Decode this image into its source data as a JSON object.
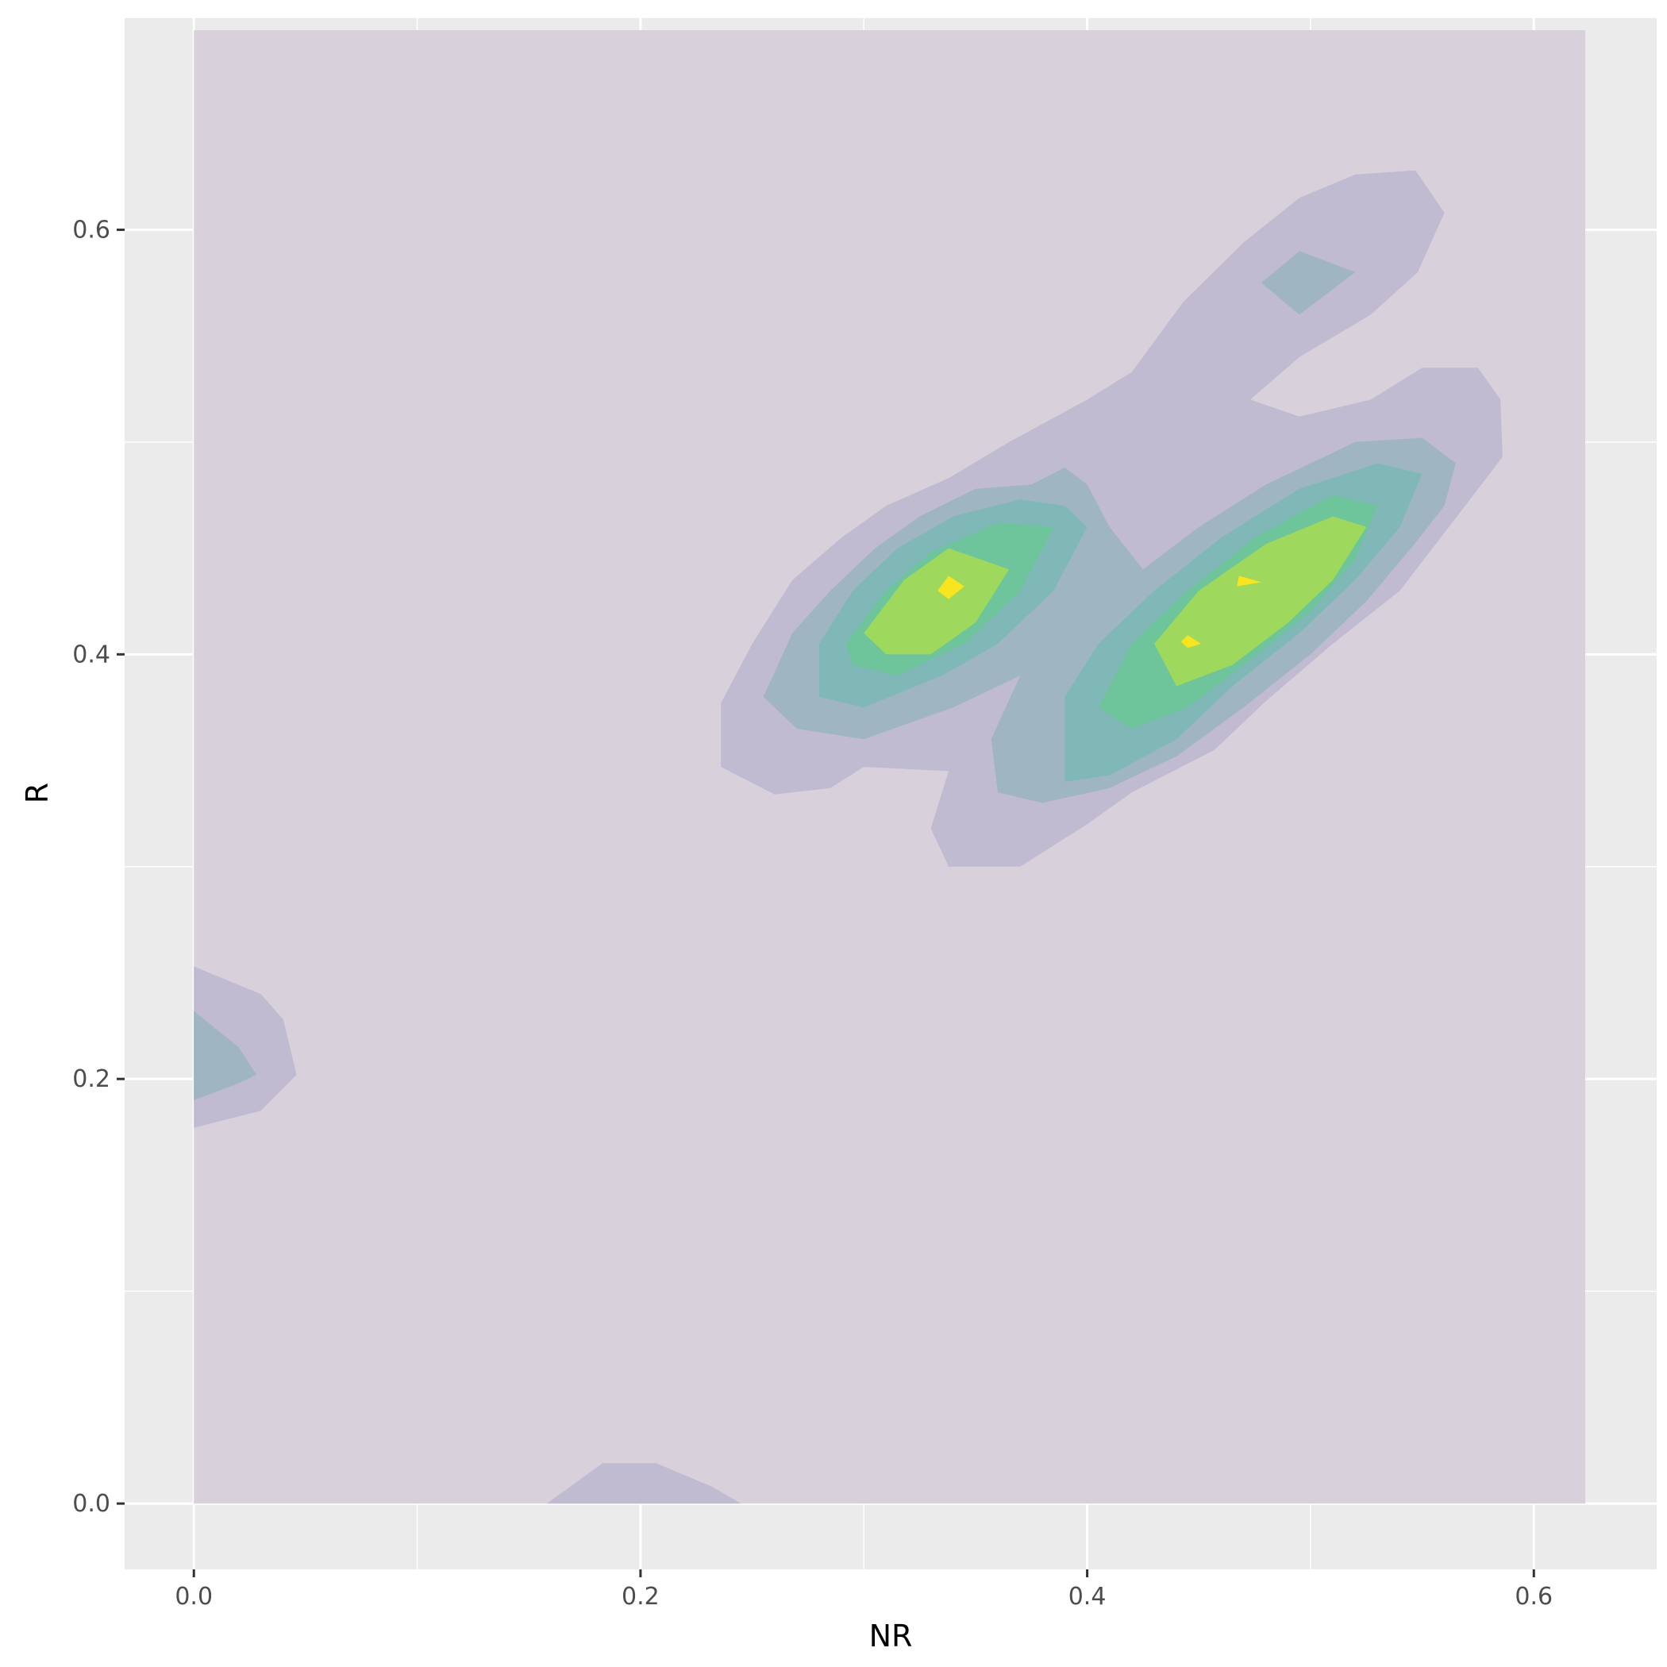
{
  "chart_data": {
    "type": "filled-density-contour",
    "title": "",
    "xlabel": "NR",
    "ylabel": "R",
    "xlim": [
      -0.031,
      0.655
    ],
    "ylim": [
      -0.031,
      0.7
    ],
    "x_ticks": [
      0.0,
      0.2,
      0.4,
      0.6
    ],
    "x_tick_labels": [
      "0.0",
      "0.2",
      "0.4",
      "0.6"
    ],
    "y_ticks": [
      0.0,
      0.2,
      0.4,
      0.6
    ],
    "y_tick_labels": [
      "0.0",
      "0.2",
      "0.4",
      "0.6"
    ],
    "grid": true,
    "legend": "none",
    "colors": {
      "panel_background": "#ebebeb",
      "grid_line": "#ffffff",
      "level_1": "#d8d1dc",
      "level_2": "#c0bbd1",
      "level_3": "#a0b5c2",
      "level_4": "#80b8b8",
      "level_5": "#6ec59b",
      "level_6": "#9ed85c",
      "level_7": "#f6e51f"
    },
    "levels": [
      {
        "level": 1,
        "polygons": [
          [
            [
              0.0,
              0.0
            ],
            [
              0.623,
              0.0
            ],
            [
              0.623,
              0.694
            ],
            [
              0.0,
              0.694
            ]
          ]
        ]
      },
      {
        "level": 2,
        "polygons": [
          [
            [
              0.236,
              0.347
            ],
            [
              0.236,
              0.377
            ],
            [
              0.25,
              0.405
            ],
            [
              0.268,
              0.435
            ],
            [
              0.29,
              0.455
            ],
            [
              0.31,
              0.47
            ],
            [
              0.338,
              0.483
            ],
            [
              0.365,
              0.5
            ],
            [
              0.4,
              0.52
            ],
            [
              0.42,
              0.533
            ],
            [
              0.443,
              0.566
            ],
            [
              0.47,
              0.594
            ],
            [
              0.495,
              0.615
            ],
            [
              0.52,
              0.626
            ],
            [
              0.547,
              0.628
            ],
            [
              0.56,
              0.608
            ],
            [
              0.548,
              0.58
            ],
            [
              0.527,
              0.56
            ],
            [
              0.495,
              0.54
            ],
            [
              0.473,
              0.52
            ],
            [
              0.495,
              0.512
            ],
            [
              0.527,
              0.52
            ],
            [
              0.55,
              0.535
            ],
            [
              0.575,
              0.535
            ],
            [
              0.585,
              0.52
            ],
            [
              0.586,
              0.493
            ],
            [
              0.57,
              0.471
            ],
            [
              0.54,
              0.43
            ],
            [
              0.51,
              0.405
            ],
            [
              0.48,
              0.378
            ],
            [
              0.457,
              0.355
            ],
            [
              0.42,
              0.335
            ],
            [
              0.4,
              0.32
            ],
            [
              0.37,
              0.3
            ],
            [
              0.338,
              0.3
            ],
            [
              0.33,
              0.318
            ],
            [
              0.338,
              0.345
            ],
            [
              0.3,
              0.347
            ],
            [
              0.285,
              0.337
            ],
            [
              0.26,
              0.334
            ]
          ],
          [
            [
              0.0,
              0.253
            ],
            [
              0.03,
              0.24
            ],
            [
              0.04,
              0.228
            ],
            [
              0.046,
              0.202
            ],
            [
              0.03,
              0.185
            ],
            [
              0.0,
              0.177
            ]
          ],
          [
            [
              0.158,
              0.0
            ],
            [
              0.183,
              0.019
            ],
            [
              0.207,
              0.019
            ],
            [
              0.232,
              0.008
            ],
            [
              0.245,
              0.0
            ]
          ]
        ]
      },
      {
        "level": 3,
        "polygons": [
          [
            [
              0.255,
              0.38
            ],
            [
              0.268,
              0.41
            ],
            [
              0.285,
              0.43
            ],
            [
              0.305,
              0.45
            ],
            [
              0.325,
              0.465
            ],
            [
              0.35,
              0.478
            ],
            [
              0.375,
              0.48
            ],
            [
              0.39,
              0.488
            ],
            [
              0.4,
              0.48
            ],
            [
              0.41,
              0.46
            ],
            [
              0.425,
              0.44
            ],
            [
              0.45,
              0.46
            ],
            [
              0.48,
              0.48
            ],
            [
              0.52,
              0.5
            ],
            [
              0.55,
              0.502
            ],
            [
              0.565,
              0.49
            ],
            [
              0.56,
              0.47
            ],
            [
              0.545,
              0.45
            ],
            [
              0.525,
              0.425
            ],
            [
              0.5,
              0.4
            ],
            [
              0.47,
              0.375
            ],
            [
              0.44,
              0.352
            ],
            [
              0.41,
              0.337
            ],
            [
              0.38,
              0.33
            ],
            [
              0.36,
              0.335
            ],
            [
              0.357,
              0.36
            ],
            [
              0.37,
              0.39
            ],
            [
              0.34,
              0.375
            ],
            [
              0.3,
              0.36
            ],
            [
              0.27,
              0.365
            ]
          ],
          [
            [
              0.0,
              0.232
            ],
            [
              0.02,
              0.215
            ],
            [
              0.028,
              0.202
            ],
            [
              0.02,
              0.198
            ],
            [
              0.0,
              0.19
            ]
          ],
          [
            [
              0.478,
              0.575
            ],
            [
              0.495,
              0.59
            ],
            [
              0.52,
              0.58
            ],
            [
              0.495,
              0.56
            ]
          ]
        ]
      },
      {
        "level": 4,
        "polygons": [
          [
            [
              0.28,
              0.405
            ],
            [
              0.295,
              0.43
            ],
            [
              0.315,
              0.45
            ],
            [
              0.34,
              0.465
            ],
            [
              0.37,
              0.473
            ],
            [
              0.39,
              0.47
            ],
            [
              0.4,
              0.46
            ],
            [
              0.385,
              0.43
            ],
            [
              0.36,
              0.405
            ],
            [
              0.335,
              0.39
            ],
            [
              0.3,
              0.375
            ],
            [
              0.28,
              0.38
            ]
          ],
          [
            [
              0.39,
              0.34
            ],
            [
              0.39,
              0.38
            ],
            [
              0.405,
              0.405
            ],
            [
              0.43,
              0.43
            ],
            [
              0.46,
              0.455
            ],
            [
              0.495,
              0.478
            ],
            [
              0.53,
              0.49
            ],
            [
              0.55,
              0.485
            ],
            [
              0.54,
              0.46
            ],
            [
              0.52,
              0.435
            ],
            [
              0.495,
              0.41
            ],
            [
              0.465,
              0.385
            ],
            [
              0.44,
              0.36
            ],
            [
              0.41,
              0.343
            ]
          ]
        ]
      },
      {
        "level": 5,
        "polygons": [
          [
            [
              0.292,
              0.405
            ],
            [
              0.31,
              0.43
            ],
            [
              0.33,
              0.448
            ],
            [
              0.36,
              0.462
            ],
            [
              0.385,
              0.46
            ],
            [
              0.37,
              0.43
            ],
            [
              0.345,
              0.405
            ],
            [
              0.315,
              0.39
            ],
            [
              0.295,
              0.395
            ]
          ],
          [
            [
              0.405,
              0.375
            ],
            [
              0.42,
              0.405
            ],
            [
              0.445,
              0.43
            ],
            [
              0.475,
              0.455
            ],
            [
              0.51,
              0.475
            ],
            [
              0.53,
              0.47
            ],
            [
              0.52,
              0.445
            ],
            [
              0.5,
              0.42
            ],
            [
              0.47,
              0.395
            ],
            [
              0.445,
              0.375
            ],
            [
              0.42,
              0.365
            ]
          ]
        ]
      },
      {
        "level": 6,
        "polygons": [
          [
            [
              0.3,
              0.41
            ],
            [
              0.318,
              0.435
            ],
            [
              0.338,
              0.45
            ],
            [
              0.365,
              0.44
            ],
            [
              0.35,
              0.415
            ],
            [
              0.33,
              0.4
            ],
            [
              0.31,
              0.4
            ]
          ],
          [
            [
              0.43,
              0.405
            ],
            [
              0.45,
              0.43
            ],
            [
              0.48,
              0.452
            ],
            [
              0.51,
              0.465
            ],
            [
              0.525,
              0.46
            ],
            [
              0.51,
              0.435
            ],
            [
              0.49,
              0.415
            ],
            [
              0.465,
              0.395
            ],
            [
              0.44,
              0.385
            ]
          ]
        ]
      },
      {
        "level": 7,
        "polygons": [
          [
            [
              0.333,
              0.43
            ],
            [
              0.338,
              0.437
            ],
            [
              0.345,
              0.432
            ],
            [
              0.338,
              0.426
            ]
          ],
          [
            [
              0.467,
              0.432
            ],
            [
              0.468,
              0.437
            ],
            [
              0.478,
              0.434
            ]
          ],
          [
            [
              0.442,
              0.406
            ],
            [
              0.445,
              0.409
            ],
            [
              0.451,
              0.405
            ],
            [
              0.445,
              0.403
            ]
          ]
        ]
      }
    ]
  }
}
